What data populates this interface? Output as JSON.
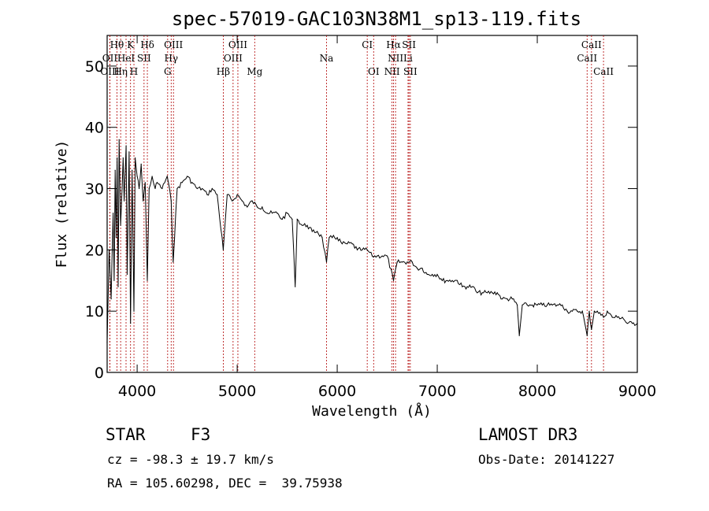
{
  "chart_data": {
    "type": "line",
    "title": "spec-57019-GAC103N38M1_sp13-119.fits",
    "xlabel": "Wavelength (Å)",
    "ylabel": "Flux (relative)",
    "xlim": [
      3700,
      9000
    ],
    "ylim": [
      0,
      55
    ],
    "xticks": [
      4000,
      5000,
      6000,
      7000,
      8000,
      9000
    ],
    "yticks": [
      0,
      10,
      20,
      30,
      40,
      50
    ],
    "series": [
      {
        "name": "flux",
        "x": [
          3700,
          3720,
          3740,
          3760,
          3770,
          3780,
          3790,
          3800,
          3810,
          3820,
          3835,
          3850,
          3860,
          3870,
          3890,
          3900,
          3920,
          3934,
          3950,
          3968,
          3980,
          4000,
          4020,
          4040,
          4060,
          4080,
          4102,
          4120,
          4150,
          4180,
          4200,
          4250,
          4300,
          4340,
          4360,
          4400,
          4450,
          4500,
          4550,
          4600,
          4650,
          4700,
          4750,
          4800,
          4861,
          4900,
          4950,
          5000,
          5050,
          5100,
          5150,
          5200,
          5250,
          5300,
          5350,
          5400,
          5450,
          5500,
          5550,
          5580,
          5600,
          5650,
          5700,
          5750,
          5800,
          5850,
          5893,
          5920,
          5950,
          6000,
          6050,
          6100,
          6150,
          6200,
          6250,
          6300,
          6350,
          6400,
          6450,
          6500,
          6563,
          6600,
          6650,
          6700,
          6750,
          6800,
          6850,
          6900,
          6950,
          7000,
          7050,
          7100,
          7150,
          7200,
          7250,
          7300,
          7350,
          7400,
          7450,
          7500,
          7550,
          7600,
          7650,
          7700,
          7750,
          7800,
          7820,
          7850,
          7900,
          7950,
          8000,
          8050,
          8100,
          8150,
          8200,
          8250,
          8300,
          8350,
          8400,
          8450,
          8498,
          8520,
          8542,
          8570,
          8600,
          8662,
          8700,
          8750,
          8800,
          8850,
          8900,
          8950,
          9000
        ],
        "y": [
          5,
          20,
          12,
          26,
          15,
          33,
          22,
          35,
          14,
          38,
          24,
          30,
          35,
          28,
          37,
          16,
          36,
          8,
          33,
          10,
          35,
          32,
          30,
          34,
          28,
          31,
          15,
          30,
          32,
          30,
          31,
          30,
          32,
          28,
          18,
          30,
          31,
          32,
          31,
          30,
          30,
          29,
          30,
          29,
          20,
          29,
          28,
          29,
          28,
          27,
          28,
          27,
          27,
          26,
          26,
          26,
          25,
          26,
          25,
          14,
          25,
          24,
          24,
          23,
          23,
          22,
          18,
          22,
          22,
          22,
          21,
          21,
          21,
          20,
          20,
          20,
          19,
          19,
          19,
          19,
          15,
          18,
          18,
          18,
          18,
          17,
          17,
          16,
          16,
          16,
          15,
          15,
          15,
          15,
          14,
          14,
          14,
          13,
          13,
          13,
          13,
          13,
          12,
          12,
          12,
          11,
          6,
          11,
          11,
          11,
          11,
          11,
          11,
          11,
          11,
          11,
          10,
          10,
          10,
          10,
          6,
          10,
          7,
          10,
          10,
          9,
          10,
          9,
          9,
          9,
          8,
          8,
          8
        ]
      }
    ],
    "spectral_lines": [
      {
        "label": "Hθ",
        "x": 3798,
        "row": 0
      },
      {
        "label": "K",
        "x": 3934,
        "row": 0
      },
      {
        "label": "Hδ",
        "x": 4102,
        "row": 0
      },
      {
        "label": "OIII",
        "x": 4363,
        "row": 0
      },
      {
        "label": "OIII",
        "x": 5007,
        "row": 0
      },
      {
        "label": "CI",
        "x": 6300,
        "row": 0
      },
      {
        "label": "Hα",
        "x": 6563,
        "row": 0
      },
      {
        "label": "SII",
        "x": 6717,
        "row": 0
      },
      {
        "label": "CaII",
        "x": 8542,
        "row": 0
      },
      {
        "label": "OII",
        "x": 3727,
        "row": 1
      },
      {
        "label": "HeI",
        "x": 3889,
        "row": 1
      },
      {
        "label": "SII",
        "x": 4069,
        "row": 1
      },
      {
        "label": "Hγ",
        "x": 4340,
        "row": 1
      },
      {
        "label": "OIII",
        "x": 4959,
        "row": 1
      },
      {
        "label": "Na",
        "x": 5893,
        "row": 1
      },
      {
        "label": "NII",
        "x": 6583,
        "row": 1
      },
      {
        "label": "Li",
        "x": 6708,
        "row": 1
      },
      {
        "label": "CaII",
        "x": 8498,
        "row": 1
      },
      {
        "label": "OIII",
        "x": 3727,
        "row": 2
      },
      {
        "label": "Hη",
        "x": 3835,
        "row": 2
      },
      {
        "label": "H",
        "x": 3968,
        "row": 2
      },
      {
        "label": "G",
        "x": 4305,
        "row": 2
      },
      {
        "label": "Hβ",
        "x": 4861,
        "row": 2
      },
      {
        "label": "Mg",
        "x": 5175,
        "row": 2
      },
      {
        "label": "OI",
        "x": 6364,
        "row": 2
      },
      {
        "label": "NII",
        "x": 6548,
        "row": 2
      },
      {
        "label": "SII",
        "x": 6731,
        "row": 2
      },
      {
        "label": "CaII",
        "x": 8662,
        "row": 2
      }
    ]
  },
  "info": {
    "object_type": "STAR",
    "subclass": "F3",
    "survey": "LAMOST DR3",
    "redshift_line": "cz = -98.3 ± 19.7 km/s",
    "obs_date_line": "Obs-Date: 20141227",
    "coords_line": "RA = 105.60298, DEC =  39.75938"
  }
}
